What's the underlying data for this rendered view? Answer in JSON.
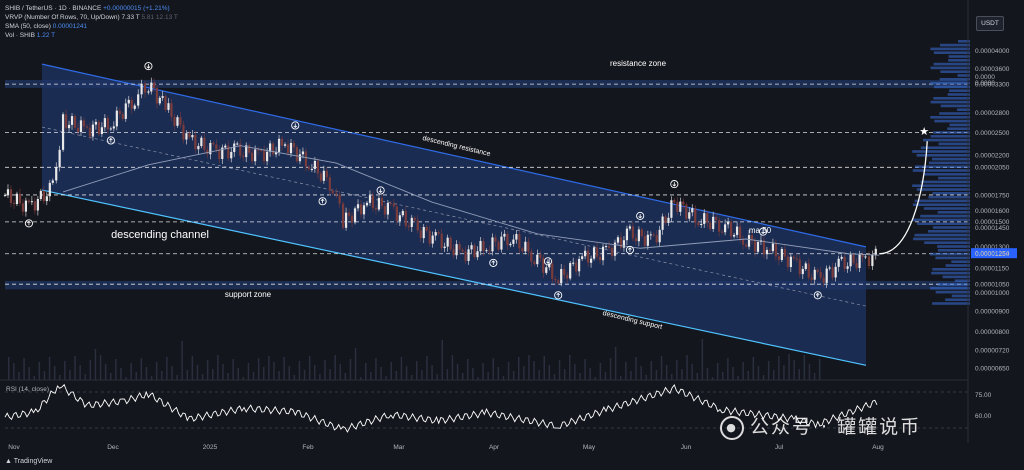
{
  "header": {
    "symbol_line": "SHIB / TetherUS · 1D · BINANCE",
    "change": "+0.00000015 (+1.21%)",
    "vrvp_label": "VRVP (Number Of Rows, 70, Up/Down)",
    "vrvp_values": "7.33 T",
    "vrvp_values_dim": "5.81  12.13 T",
    "sma_label": "SMA (50, close)",
    "sma_value": "0.00001241",
    "vol_label": "Vol · SHIB",
    "vol_value": "1.22 T"
  },
  "axis_currency": "USDT",
  "chart_data": {
    "type": "line",
    "title": "",
    "xlabel": "",
    "ylabel": "",
    "y_scale": "log",
    "ylim": [
      6.5e-06,
      4.2e-05
    ],
    "grid": false,
    "x_ticks": [
      "Nov",
      "Dec",
      "2025",
      "Feb",
      "Mar",
      "Apr",
      "May",
      "Jun",
      "Jul",
      "Aug"
    ],
    "y_ticks": [
      "0.00004000",
      "0.00003600",
      "0.00003300",
      "0.00002800",
      "0.00002500",
      "0.00002200",
      "0.00002050",
      "0.00001750",
      "0.00001600",
      "0.00001500",
      "0.00001450",
      "0.00001300",
      "0.00001254",
      "0.00001250",
      "0.00001150",
      "0.00001050",
      "0.00001000",
      "0.00000900",
      "0.00000800",
      "0.00000720",
      "0.00000650"
    ],
    "highlighted_price": "0.00001254",
    "horizontal_levels": [
      3.3e-05,
      2.5e-05,
      2.05e-05,
      1.75e-05,
      1.5e-05,
      1.25e-05,
      1.05e-05
    ],
    "series": [
      {
        "name": "SHIB / TetherUS",
        "kind": "price",
        "points": [
          [
            "2024-10-27",
            1.75e-05
          ],
          [
            "2024-11-03",
            1.63e-05
          ],
          [
            "2024-11-10",
            1.82e-05
          ],
          [
            "2024-11-13",
            2.68e-05
          ],
          [
            "2024-11-20",
            2.55e-05
          ],
          [
            "2024-11-27",
            2.62e-05
          ],
          [
            "2024-12-04",
            3.05e-05
          ],
          [
            "2024-12-08",
            3.3e-05
          ],
          [
            "2024-12-13",
            2.9e-05
          ],
          [
            "2024-12-20",
            2.4e-05
          ],
          [
            "2024-12-27",
            2.25e-05
          ],
          [
            "2025-01-03",
            2.25e-05
          ],
          [
            "2025-01-10",
            2.2e-05
          ],
          [
            "2025-01-17",
            2.35e-05
          ],
          [
            "2025-01-24",
            2.1e-05
          ],
          [
            "2025-01-31",
            1.85e-05
          ],
          [
            "2025-02-03",
            1.5e-05
          ],
          [
            "2025-02-10",
            1.68e-05
          ],
          [
            "2025-02-17",
            1.62e-05
          ],
          [
            "2025-02-24",
            1.45e-05
          ],
          [
            "2025-03-03",
            1.35e-05
          ],
          [
            "2025-03-10",
            1.25e-05
          ],
          [
            "2025-03-17",
            1.3e-05
          ],
          [
            "2025-03-24",
            1.38e-05
          ],
          [
            "2025-03-31",
            1.23e-05
          ],
          [
            "2025-04-07",
            1.08e-05
          ],
          [
            "2025-04-14",
            1.22e-05
          ],
          [
            "2025-04-21",
            1.26e-05
          ],
          [
            "2025-04-28",
            1.4e-05
          ],
          [
            "2025-05-05",
            1.35e-05
          ],
          [
            "2025-05-11",
            1.68e-05
          ],
          [
            "2025-05-18",
            1.52e-05
          ],
          [
            "2025-05-25",
            1.48e-05
          ],
          [
            "2025-06-01",
            1.35e-05
          ],
          [
            "2025-06-08",
            1.28e-05
          ],
          [
            "2025-06-15",
            1.19e-05
          ],
          [
            "2025-06-22",
            1.08e-05
          ],
          [
            "2025-06-29",
            1.18e-05
          ],
          [
            "2025-07-06",
            1.21e-05
          ],
          [
            "2025-07-10",
            1.25e-05
          ]
        ]
      },
      {
        "name": "SMA (50, close)",
        "kind": "sma",
        "points": [
          [
            "2024-11-13",
            1.78e-05
          ],
          [
            "2024-12-08",
            2.08e-05
          ],
          [
            "2025-01-04",
            2.32e-05
          ],
          [
            "2025-02-01",
            2.1e-05
          ],
          [
            "2025-03-01",
            1.68e-05
          ],
          [
            "2025-04-01",
            1.4e-05
          ],
          [
            "2025-05-01",
            1.29e-05
          ],
          [
            "2025-06-01",
            1.36e-05
          ],
          [
            "2025-07-01",
            1.25e-05
          ],
          [
            "2025-07-10",
            1.24e-05
          ]
        ]
      },
      {
        "name": "RSI (14, close)",
        "kind": "rsi",
        "ylim": [
          20,
          80
        ],
        "y_ticks": [
          "75.00"
        ],
        "points": [
          [
            "2024-10-27",
            42
          ],
          [
            "2024-11-05",
            48
          ],
          [
            "2024-11-12",
            78
          ],
          [
            "2024-11-20",
            55
          ],
          [
            "2024-12-01",
            60
          ],
          [
            "2024-12-08",
            68
          ],
          [
            "2024-12-20",
            40
          ],
          [
            "2025-01-05",
            52
          ],
          [
            "2025-01-20",
            48
          ],
          [
            "2025-02-03",
            28
          ],
          [
            "2025-02-17",
            45
          ],
          [
            "2025-03-03",
            38
          ],
          [
            "2025-03-17",
            47
          ],
          [
            "2025-04-07",
            32
          ],
          [
            "2025-04-21",
            50
          ],
          [
            "2025-05-11",
            74
          ],
          [
            "2025-05-25",
            50
          ],
          [
            "2025-06-15",
            40
          ],
          [
            "2025-06-22",
            34
          ],
          [
            "2025-07-10",
            60
          ]
        ]
      }
    ],
    "annotations": {
      "resistance_zone": "resistance zone",
      "support_zone": "support zone",
      "descending_channel": "descending channel",
      "descending_resistance": "descending resistance",
      "descending_support": "descending support",
      "ma_label": "ma 50",
      "rsi_label": "RSI (14, close)",
      "rsi_value": "75.00",
      "rsi_value_2": "60.00",
      "partial_tick_1": "0.0000",
      "partial_tick_2": "0.0000"
    },
    "arrows_down_dates": [
      "2024-12-08",
      "2025-01-20",
      "2025-02-14",
      "2025-04-04",
      "2025-05-01",
      "2025-05-11",
      "2025-06-06"
    ],
    "arrows_up_dates": [
      "2024-11-03",
      "2024-11-27",
      "2025-01-28",
      "2025-03-19",
      "2025-04-07",
      "2025-04-28",
      "2025-06-22"
    ]
  },
  "footer": {
    "brand": "TradingView",
    "watermark": "公众号 · 罐罐说币"
  },
  "colors": {
    "background": "#14161d",
    "channel_fill": "#1d3466",
    "channel_line": "#2e6be6",
    "support_line": "#4fc3ff",
    "candle_up": "#e8e8e8",
    "candle_down": "#7a3b3b",
    "sma_line": "#8f9db8",
    "rsi_line": "#ffffff",
    "zone_fill": "#1c2d52"
  }
}
